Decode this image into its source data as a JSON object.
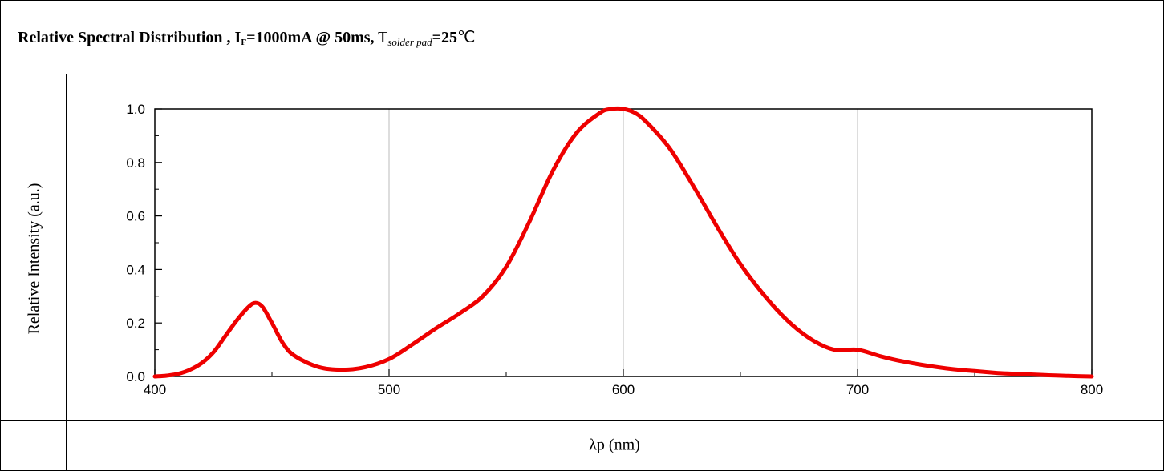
{
  "title": {
    "prefix": "Relative Spectral Distribution ,  ",
    "current_symbol": "I",
    "current_sub": "F",
    "current_value": "=1000mA @ 50ms,",
    "temp_symbol": "T",
    "temp_sub": "solder pad",
    "temp_value": "=25",
    "temp_unit": "℃"
  },
  "colors": {
    "curve": "#ee0000",
    "grid": "#bbbbbb",
    "axis": "#000000"
  },
  "chart_data": {
    "type": "line",
    "xlabel": "λp (nm)",
    "ylabel": "Relative Intensity (a.u.)",
    "xlim": [
      400,
      800
    ],
    "ylim": [
      0,
      1.0
    ],
    "xticks": [
      400,
      500,
      600,
      700,
      800
    ],
    "xtick_labels": [
      "400",
      "500",
      "600",
      "700",
      "800"
    ],
    "yticks": [
      0.0,
      0.2,
      0.4,
      0.6,
      0.8,
      1.0
    ],
    "ytick_labels": [
      "0.0",
      "0.2",
      "0.4",
      "0.6",
      "0.8",
      "1.0"
    ],
    "grid": "vertical",
    "series": [
      {
        "x": [
          400,
          405,
          410,
          415,
          420,
          425,
          430,
          435,
          440,
          443,
          446,
          450,
          455,
          460,
          470,
          480,
          490,
          500,
          510,
          520,
          530,
          540,
          550,
          560,
          570,
          580,
          590,
          595,
          600,
          605,
          610,
          620,
          630,
          640,
          650,
          660,
          670,
          680,
          690,
          700,
          710,
          720,
          730,
          740,
          750,
          760,
          770,
          780,
          790,
          800
        ],
        "y": [
          0.0,
          0.003,
          0.01,
          0.025,
          0.05,
          0.09,
          0.15,
          0.21,
          0.26,
          0.275,
          0.26,
          0.2,
          0.12,
          0.075,
          0.035,
          0.025,
          0.035,
          0.065,
          0.12,
          0.18,
          0.235,
          0.3,
          0.41,
          0.58,
          0.77,
          0.91,
          0.985,
          1.0,
          1.0,
          0.985,
          0.95,
          0.85,
          0.71,
          0.56,
          0.42,
          0.305,
          0.21,
          0.14,
          0.1,
          0.1,
          0.075,
          0.055,
          0.04,
          0.028,
          0.02,
          0.013,
          0.009,
          0.005,
          0.002,
          0.0
        ]
      }
    ]
  }
}
